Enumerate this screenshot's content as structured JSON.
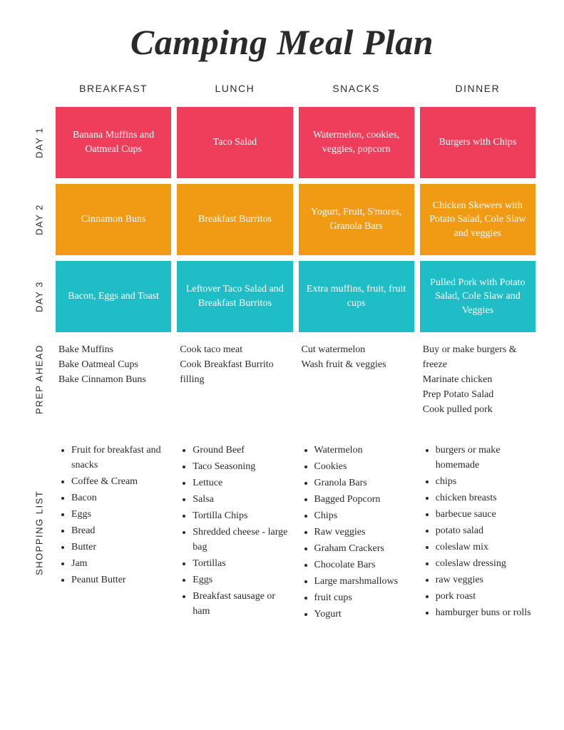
{
  "title": "Camping Meal Plan",
  "columns": [
    "BREAKFAST",
    "LUNCH",
    "SNACKS",
    "DINNER"
  ],
  "rows": {
    "day1": {
      "label": "DAY 1",
      "color": "#ef3e5c",
      "cells": [
        "Banana Muffins and Oatmeal Cups",
        "Taco Salad",
        "Watermelon, cookies, veggies, popcorn",
        "Burgers with Chips"
      ]
    },
    "day2": {
      "label": "DAY 2",
      "color": "#f19b14",
      "cells": [
        "Cinnamon Buns",
        "Breakfast Burritos",
        "Yogurt, Fruit, S'mores, Granola Bars",
        "Chicken Skewers with Potato Salad, Cole Slaw and veggies"
      ]
    },
    "day3": {
      "label": "DAY 3",
      "color": "#1fbdc6",
      "cells": [
        "Bacon, Eggs and Toast",
        "Leftover Taco Salad and Breakfast Burritos",
        "Extra muffins, fruit, fruit cups",
        "Pulled Pork with Potato Salad, Cole Slaw and Veggies"
      ]
    },
    "prep": {
      "label": "PREP AHEAD",
      "cells": [
        [
          "Bake Muffins",
          "Bake Oatmeal Cups",
          "Bake Cinnamon Buns"
        ],
        [
          "Cook taco meat",
          "Cook Breakfast Burrito filling"
        ],
        [
          "Cut watermelon",
          "Wash fruit & veggies"
        ],
        [
          "Buy or make burgers & freeze",
          "Marinate chicken",
          "Prep Potato Salad",
          "Cook pulled pork"
        ]
      ]
    }
  },
  "shopping": {
    "label": "SHOPPING LIST",
    "columns": [
      [
        "Fruit for breakfast and snacks",
        "Coffee & Cream",
        "Bacon",
        "Eggs",
        "Bread",
        "Butter",
        "Jam",
        "Peanut Butter"
      ],
      [
        "Ground Beef",
        "Taco Seasoning",
        "Lettuce",
        "Salsa",
        "Tortilla Chips",
        "Shredded cheese - large bag",
        "Tortillas",
        "Eggs",
        "Breakfast sausage or ham"
      ],
      [
        "Watermelon",
        "Cookies",
        "Granola Bars",
        "Bagged Popcorn",
        "Chips",
        "Raw veggies",
        "Graham Crackers",
        "Chocolate Bars",
        "Large marshmallows",
        "fruit cups",
        "Yogurt"
      ],
      [
        "burgers or make homemade",
        "chips",
        "chicken breasts",
        "barbecue sauce",
        "potato salad",
        "coleslaw mix",
        "coleslaw dressing",
        "raw veggies",
        "pork roast",
        "hamburger buns or rolls"
      ]
    ]
  }
}
